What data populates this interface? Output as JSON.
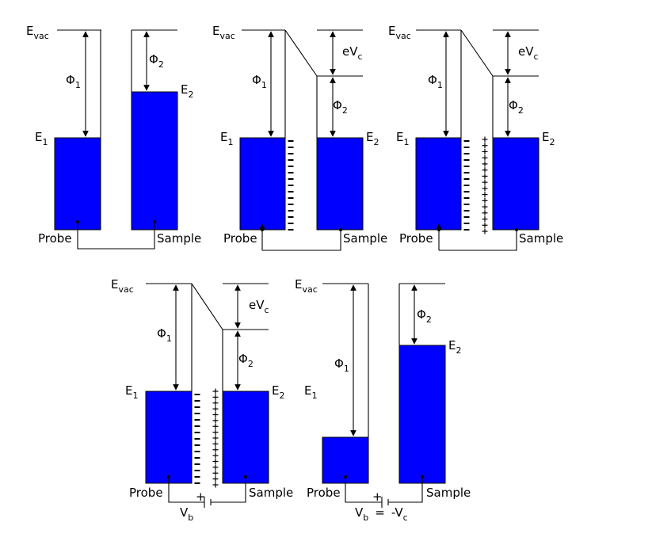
{
  "labels": {
    "e": "E",
    "vac": "vac",
    "phi": "Φ",
    "one": "1",
    "two": "2",
    "probe": "Probe",
    "sample": "Sample",
    "evc_main": "eV",
    "c": "c",
    "vb_main": "V",
    "b": "b",
    "equals": "=",
    "neg_v": "-V",
    "minus": "−",
    "plus": "+"
  },
  "colors": {
    "metal_fill": "#0000ff",
    "line": "#000000"
  },
  "panels": [
    {
      "name": "panel-1-separated",
      "charges": false,
      "contact": "wire",
      "shift": false
    },
    {
      "name": "panel-2-contact",
      "charges": "minus",
      "contact": "wire",
      "shift": true
    },
    {
      "name": "panel-3-contact-charged",
      "charges": "both",
      "contact": "wire",
      "shift": true
    },
    {
      "name": "panel-4-bias",
      "charges": "both",
      "contact": "battery",
      "shift": true
    },
    {
      "name": "panel-5-bias-compensated",
      "charges": false,
      "contact": "battery",
      "shift": false
    }
  ]
}
